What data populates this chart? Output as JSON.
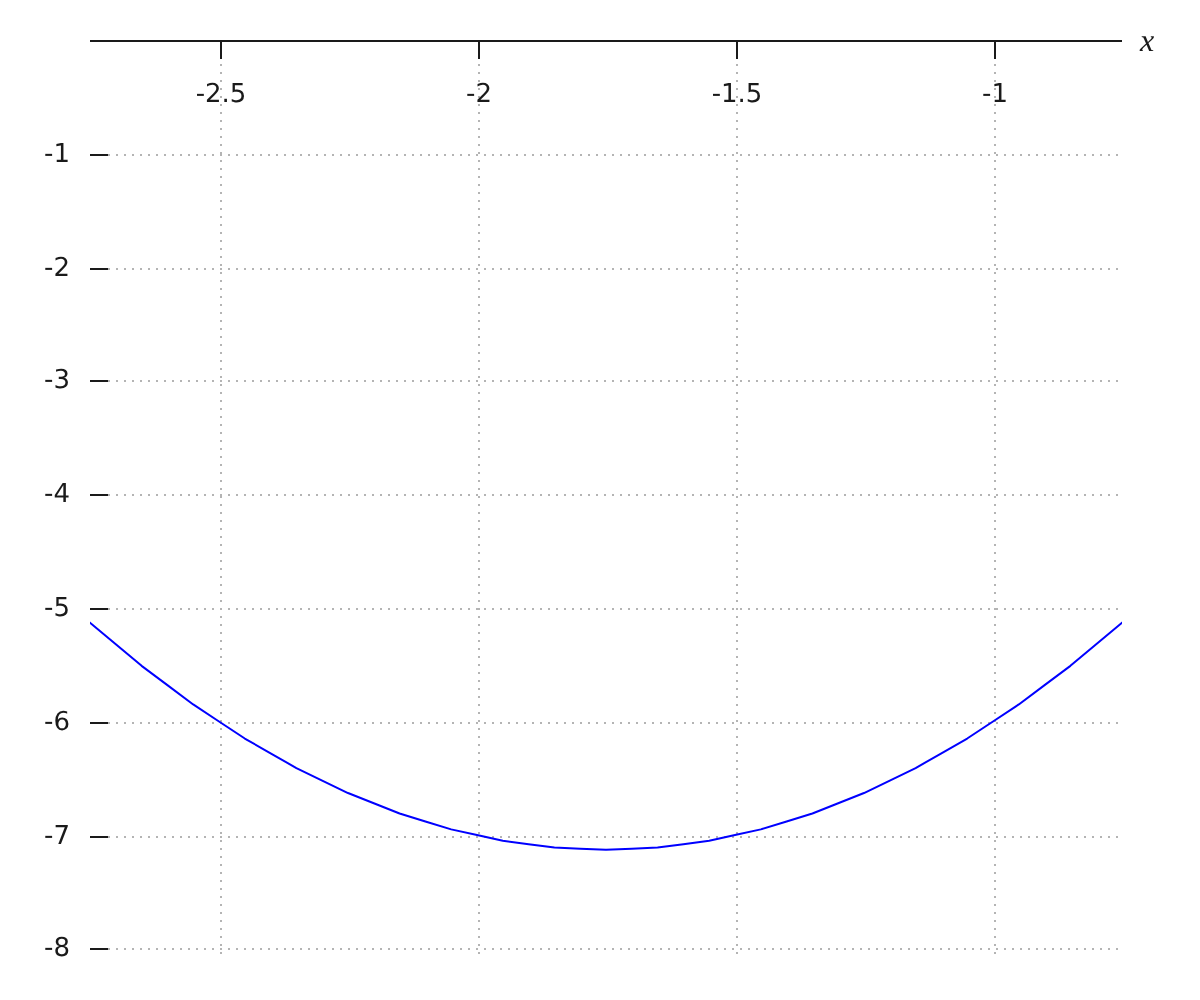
{
  "chart_data": {
    "type": "line",
    "xlabel": "x",
    "x": [
      -2.75,
      -2.7,
      -2.65,
      -2.6,
      -2.55,
      -2.5,
      -2.45,
      -2.4,
      -2.35,
      -2.3,
      -2.25,
      -2.2,
      -2.15,
      -2.1,
      -2.05,
      -2,
      -1.95,
      -1.9,
      -1.85,
      -1.8,
      -1.75,
      -1.7,
      -1.65,
      -1.6,
      -1.55,
      -1.5,
      -1.45,
      -1.4,
      -1.35,
      -1.3,
      -1.25,
      -1.2,
      -1.15,
      -1.1,
      -1.05,
      -1,
      -0.95,
      -0.9,
      -0.85,
      -0.8,
      -0.75
    ],
    "series": [
      {
        "color": "#0000ff",
        "values": [
          -5.13,
          -5.32,
          -5.51,
          -5.68,
          -5.85,
          -6,
          -6.15,
          -6.28,
          -6.41,
          -6.52,
          -6.63,
          -6.72,
          -6.81,
          -6.88,
          -6.95,
          -7,
          -7.05,
          -7.08,
          -7.11,
          -7.12,
          -7.13,
          -7.12,
          -7.11,
          -7.08,
          -7.05,
          -7,
          -6.95,
          -6.88,
          -6.81,
          -6.72,
          -6.63,
          -6.52,
          -6.41,
          -6.28,
          -6.15,
          -6,
          -5.85,
          -5.68,
          -5.51,
          -5.32,
          -5.13
        ]
      }
    ],
    "xlim": [
      -2.75,
      -0.75
    ],
    "ylim": [
      -8.1,
      0
    ],
    "xticks": [
      -2.5,
      -2,
      -1.5,
      -1
    ],
    "yticks": [
      -1,
      -2,
      -3,
      -4,
      -5,
      -6,
      -7,
      -8
    ],
    "grid": true,
    "marker": "none",
    "line_style": "solid"
  }
}
